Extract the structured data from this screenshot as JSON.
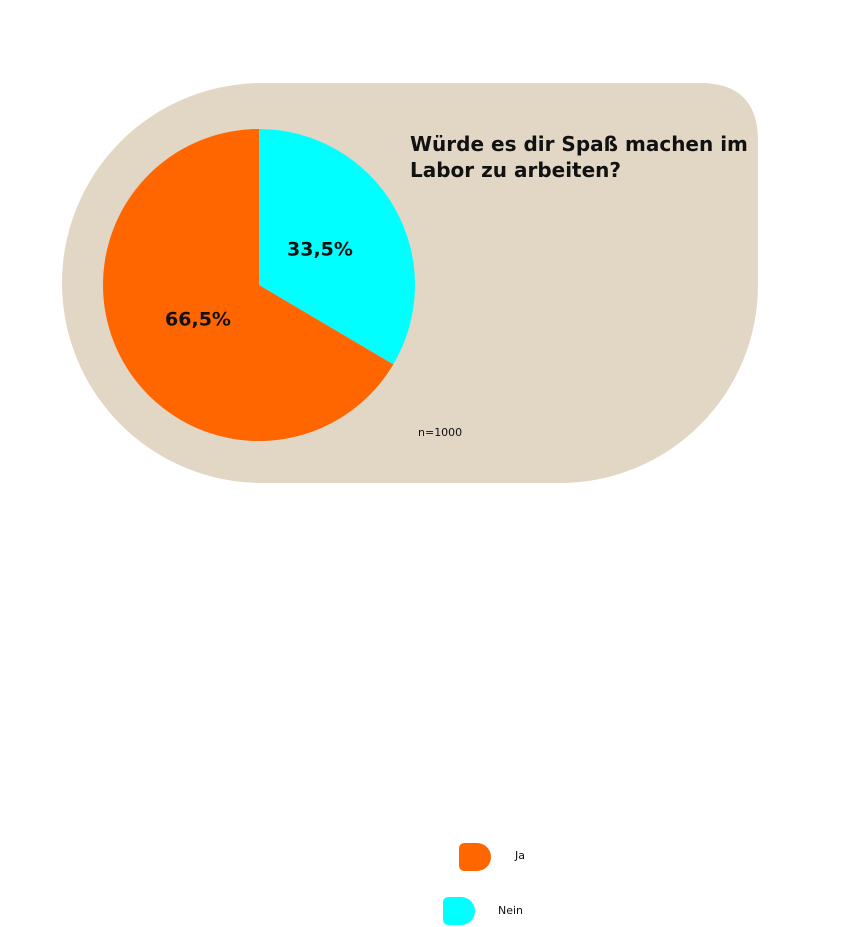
{
  "chart_data": {
    "type": "pie",
    "title": "Würde es dir Spaß machen im Labor zu arbeiten?",
    "slices": [
      {
        "label": "Ja",
        "value": 66.5,
        "display": "66,5%",
        "color": "#ff6600"
      },
      {
        "label": "Nein",
        "value": 33.5,
        "display": "33,5%",
        "color": "#00ffff"
      }
    ],
    "legend": {
      "position": "right"
    },
    "note": "n=1000"
  },
  "colors": {
    "background_panel": "#e2d6c5",
    "text": "#111111"
  }
}
